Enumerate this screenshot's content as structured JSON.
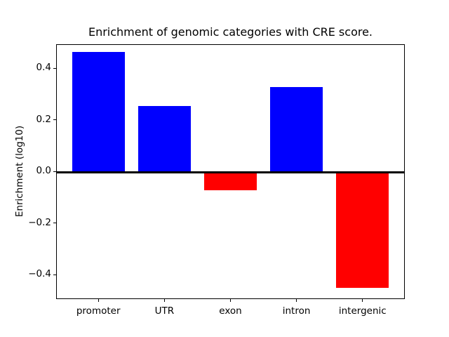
{
  "chart_data": {
    "type": "bar",
    "title": "Enrichment of genomic categories with CRE score.",
    "xlabel": "",
    "ylabel": "Enrichment (log10)",
    "categories": [
      "promoter",
      "UTR",
      "exon",
      "intron",
      "intergenic"
    ],
    "values": [
      0.464,
      0.254,
      -0.072,
      0.327,
      -0.452
    ],
    "bar_colors": [
      "#0000ff",
      "#0000ff",
      "#ff0000",
      "#0000ff",
      "#ff0000"
    ],
    "positive_color": "#0000ff",
    "negative_color": "#ff0000",
    "yticks": [
      0.4,
      0.2,
      0.0,
      -0.2,
      -0.4
    ],
    "ytick_labels": [
      "0.4",
      "0.2",
      "0.0",
      "−0.2",
      "−0.4"
    ],
    "ylim": [
      -0.495,
      0.4925
    ],
    "bar_width": 0.8,
    "grid": false,
    "legend": "none",
    "zero_line": true,
    "zero_line_color": "#000000",
    "background_color": "#ffffff",
    "axis_color": "#000000"
  }
}
